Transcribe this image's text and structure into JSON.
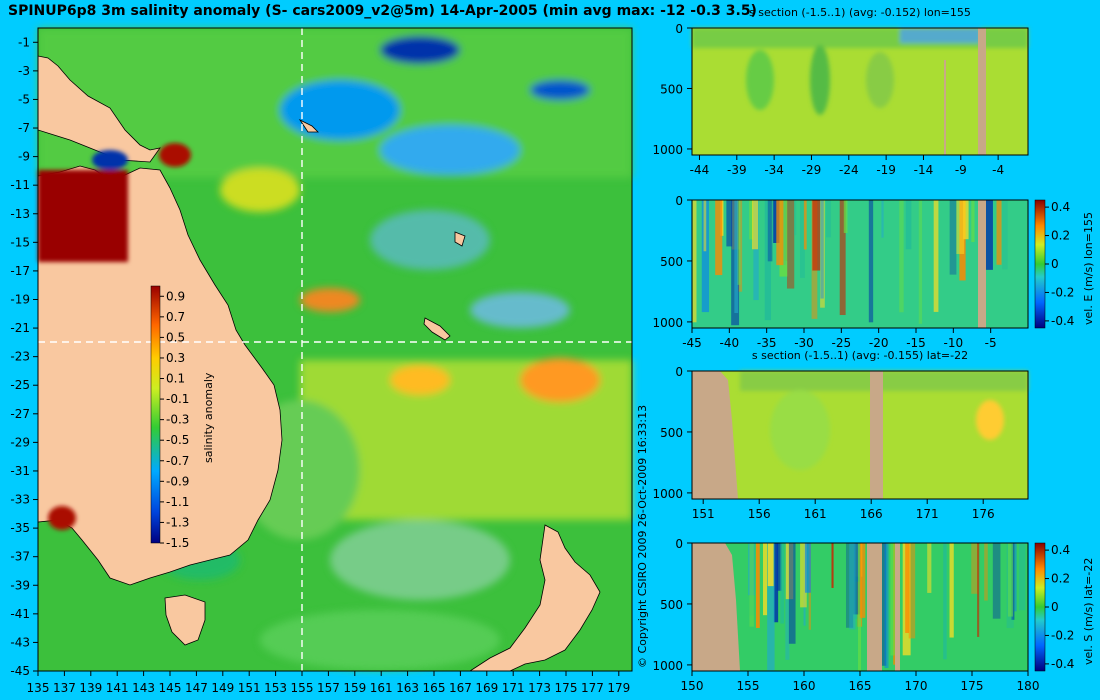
{
  "title": "SPINUP6p8 3m salinity anomaly (S- cars2009_v2@5m) 14-Apr-2005 (min avg max: -12 -0.3 3.5)",
  "copyright": "© Copyright CSIRO 2009   26-Oct-2009 16:33:13",
  "colors": {
    "background": "#00ccff",
    "land": "#f9c8a0",
    "bathy": "#c8a888",
    "ocean_base": "#3cc03c"
  },
  "chart_data": [
    {
      "type": "heatmap",
      "id": "map",
      "title": "SPINUP6p8 3m salinity anomaly (S- cars2009_v2@5m) 14-Apr-2005",
      "xlim": [
        135,
        180
      ],
      "ylim": [
        -45,
        0
      ],
      "x_ticks": [
        "135",
        "137",
        "139",
        "141",
        "143",
        "145",
        "147",
        "149",
        "151",
        "153",
        "155",
        "157",
        "159",
        "161",
        "163",
        "165",
        "167",
        "169",
        "171",
        "173",
        "175",
        "177",
        "179"
      ],
      "y_ticks": [
        "-1",
        "-3",
        "-5",
        "-7",
        "-9",
        "-11",
        "-13",
        "-15",
        "-17",
        "-19",
        "-21",
        "-23",
        "-25",
        "-27",
        "-29",
        "-31",
        "-33",
        "-35",
        "-37",
        "-39",
        "-41",
        "-43",
        "-45"
      ],
      "section_lines": {
        "lon": 155,
        "lat": -22
      },
      "colorbar": {
        "label": "salinity anomaly",
        "ticks": [
          "0.9",
          "0.7",
          "0.5",
          "0.3",
          "0.1",
          "-0.1",
          "-0.3",
          "-0.5",
          "-0.7",
          "-0.9",
          "-1.1",
          "-1.3",
          "-1.5"
        ],
        "range": [
          -1.5,
          1.0
        ]
      }
    },
    {
      "type": "heatmap",
      "id": "s_lon",
      "title": "s section (-1.5..1) (avg: -0.152) lon=155",
      "x_ticks": [
        "-44",
        "-39",
        "-34",
        "-29",
        "-24",
        "-19",
        "-14",
        "-9",
        "-4"
      ],
      "xlim": [
        -45,
        0
      ],
      "y_ticks": [
        "0",
        "500",
        "1000"
      ],
      "ylim": [
        0,
        1050
      ]
    },
    {
      "type": "heatmap",
      "id": "v_lon",
      "title": "",
      "x_ticks": [
        "-45",
        "-40",
        "-35",
        "-30",
        "-25",
        "-20",
        "-15",
        "-10",
        "-5"
      ],
      "xlim": [
        -45,
        0
      ],
      "y_ticks": [
        "0",
        "500",
        "1000"
      ],
      "ylim": [
        0,
        1050
      ],
      "colorbar": {
        "label": "vel. E (m/s) lon=155",
        "ticks": [
          "0.4",
          "0.2",
          "0",
          "-0.2",
          "-0.4"
        ],
        "range": [
          -0.45,
          0.45
        ]
      }
    },
    {
      "type": "heatmap",
      "id": "s_lat",
      "title": "s section (-1.5..1) (avg: -0.155) lat=-22",
      "x_ticks": [
        "151",
        "156",
        "161",
        "166",
        "171",
        "176"
      ],
      "xlim": [
        150,
        180
      ],
      "y_ticks": [
        "0",
        "500",
        "1000"
      ],
      "ylim": [
        0,
        1050
      ]
    },
    {
      "type": "heatmap",
      "id": "v_lat",
      "title": "",
      "x_ticks": [
        "150",
        "155",
        "160",
        "165",
        "170",
        "175",
        "180"
      ],
      "xlim": [
        150,
        180
      ],
      "y_ticks": [
        "0",
        "500",
        "1000"
      ],
      "ylim": [
        0,
        1050
      ],
      "colorbar": {
        "label": "vel. S (m/s) lat=-22",
        "ticks": [
          "0.4",
          "0.2",
          "0",
          "-0.2",
          "-0.4"
        ],
        "range": [
          -0.45,
          0.45
        ]
      }
    }
  ]
}
